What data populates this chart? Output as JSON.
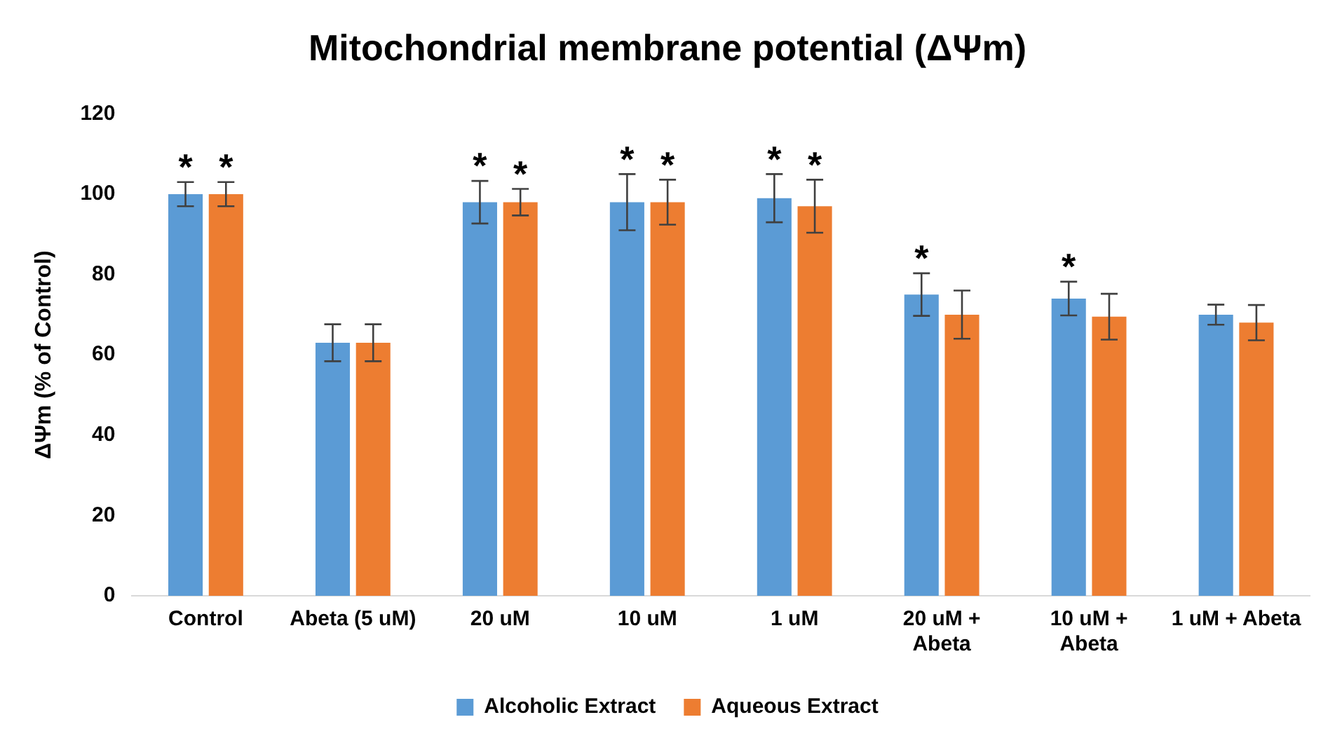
{
  "chart_data": {
    "type": "bar",
    "title": "Mitochondrial membrane potential (ΔΨm)",
    "ylabel": "ΔΨm (% of Control)",
    "categories": [
      "Control",
      "Abeta (5 uM)",
      "20 uM",
      "10 uM",
      "1 uM",
      "20 uM + Abeta",
      "10 uM + Abeta",
      "1 uM + Abeta"
    ],
    "series": [
      {
        "name": "Alcoholic Extract",
        "color": "#5b9bd5",
        "values": [
          100,
          63,
          98,
          98,
          99,
          75,
          74,
          70
        ],
        "errors": [
          3,
          4.6,
          5.3,
          7,
          6,
          5.3,
          4.2,
          2.5
        ],
        "value_labels": [
          "*",
          null,
          "*",
          "*",
          "*",
          "*",
          "*",
          null
        ]
      },
      {
        "name": "Aqueous Extract",
        "color": "#ed7d31",
        "values": [
          100,
          63,
          98,
          98,
          97,
          70,
          69.5,
          68
        ],
        "errors": [
          3,
          4.6,
          3.3,
          5.6,
          6.6,
          6,
          5.7,
          4.4
        ],
        "value_labels": [
          "*",
          null,
          "*",
          "*",
          "*",
          null,
          null,
          null
        ]
      }
    ],
    "ylim": [
      0,
      120
    ],
    "yticks": [
      0,
      20,
      40,
      60,
      80,
      100,
      120
    ],
    "grid": false,
    "legend": "bottom"
  }
}
